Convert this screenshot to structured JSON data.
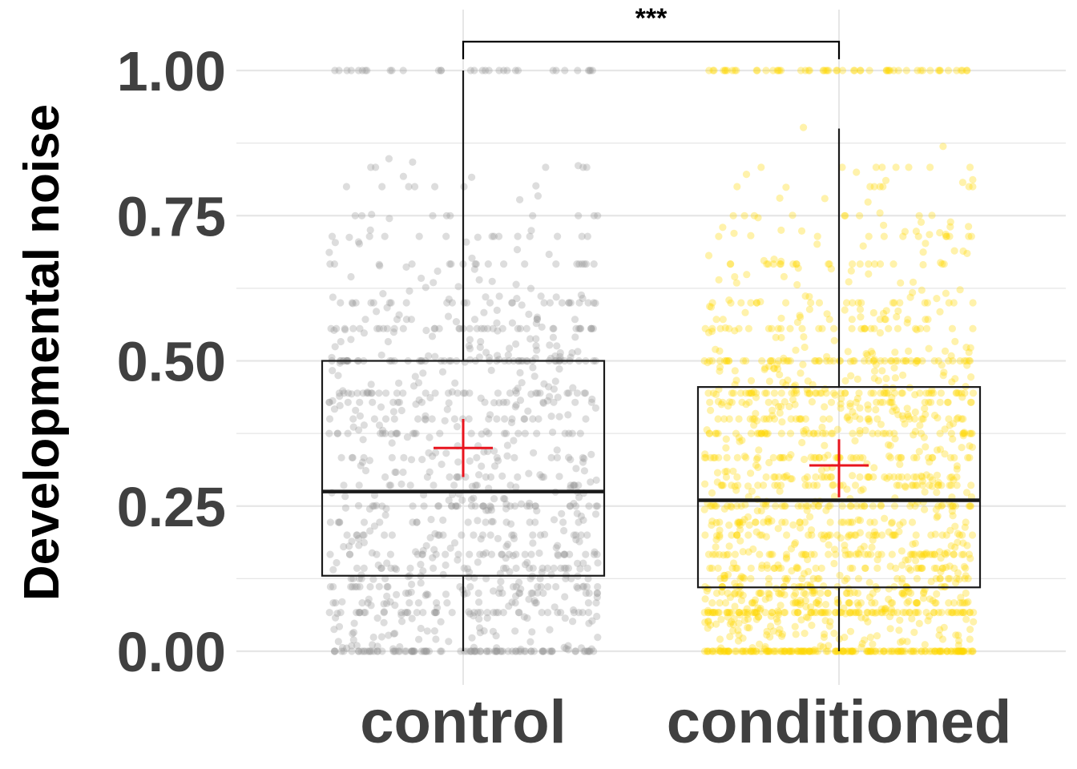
{
  "chart_data": {
    "type": "box",
    "ylabel": "Developmental noise",
    "xlabel": "",
    "ylim": [
      0,
      1.05
    ],
    "yticks": [
      "0.00",
      "0.25",
      "0.50",
      "0.75",
      "1.00"
    ],
    "grid": true,
    "legend": "none",
    "categories": [
      "control",
      "conditioned"
    ],
    "colors": {
      "control": "#999999",
      "conditioned": "#FFD700",
      "mean_marker": "#E8141E"
    },
    "boxes": [
      {
        "category": "control",
        "q1": 0.13,
        "median": 0.275,
        "q3": 0.5,
        "whisker_low": 0.0,
        "whisker_high": 1.0,
        "mean": 0.35,
        "mean_ci": [
          0.3,
          0.4
        ]
      },
      {
        "category": "conditioned",
        "q1": 0.11,
        "median": 0.26,
        "q3": 0.455,
        "whisker_low": 0.0,
        "whisker_high": 0.9,
        "mean": 0.32,
        "mean_ci": [
          0.265,
          0.365
        ]
      }
    ],
    "significance": {
      "groups": [
        "control",
        "conditioned"
      ],
      "label": "***"
    }
  }
}
